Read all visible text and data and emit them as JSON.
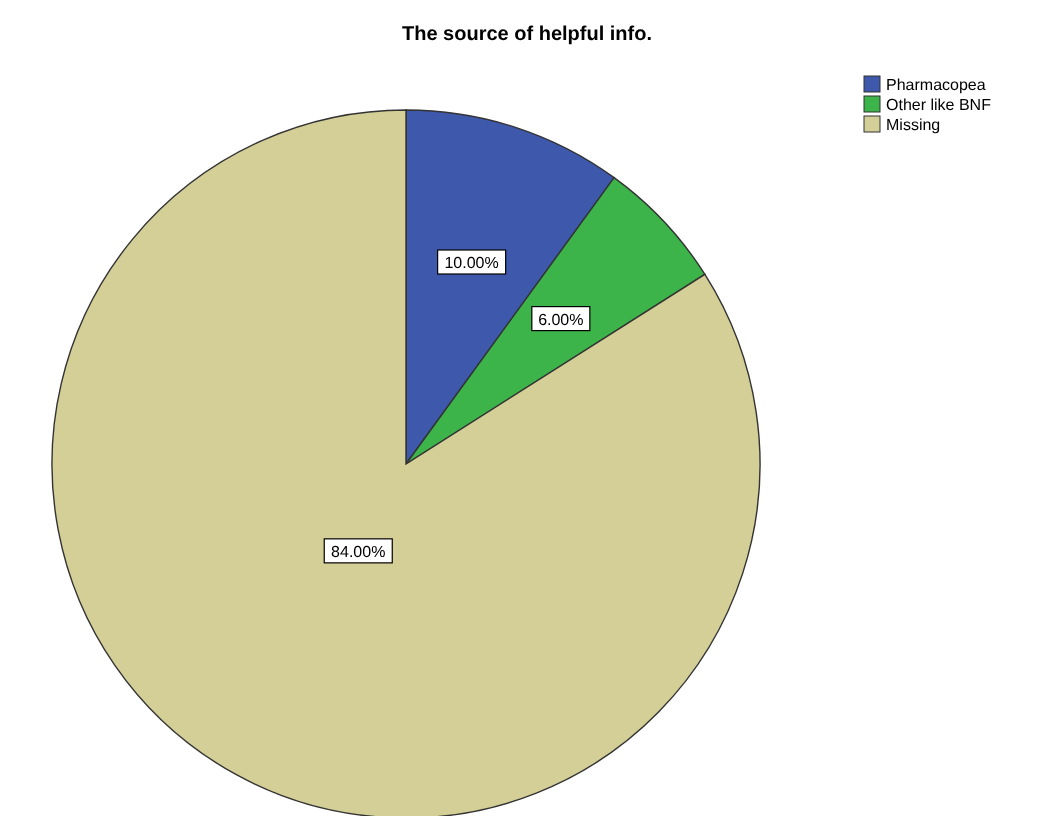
{
  "chart_data": {
    "type": "pie",
    "title": "The source of helpful info.",
    "categories": [
      "Pharmacopea",
      "Other like BNF",
      "Missing"
    ],
    "values": [
      10,
      6,
      84
    ],
    "colors": [
      "#3e58ac",
      "#3cb44a",
      "#d4cf96"
    ],
    "value_labels": [
      "10.00%",
      "6.00%",
      "84.00%"
    ],
    "legend": "top right"
  }
}
